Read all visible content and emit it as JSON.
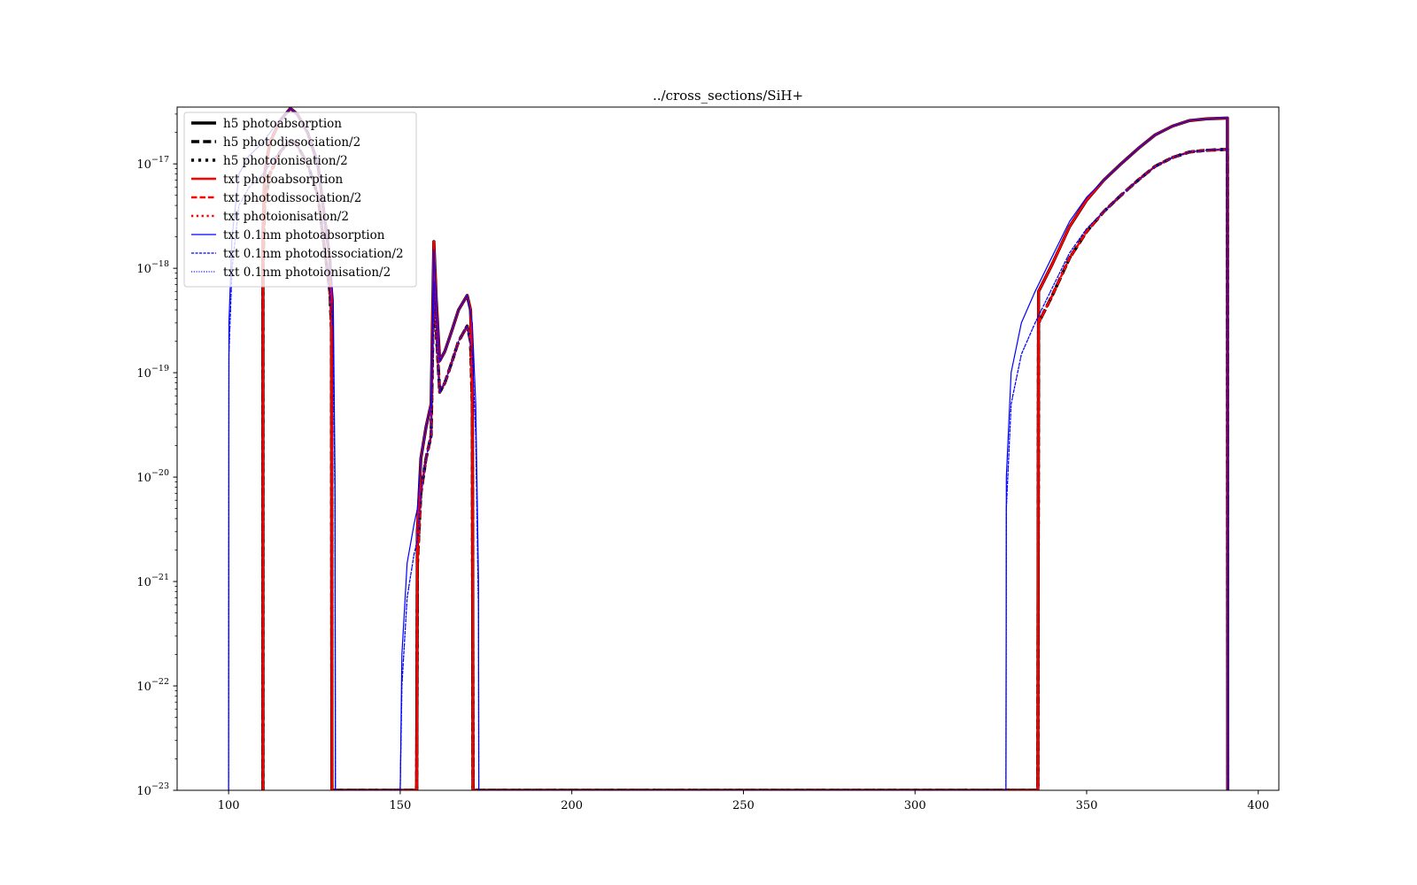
{
  "chart_data": {
    "type": "line",
    "title": "../cross_sections/SiH+",
    "xlabel": "",
    "ylabel": "",
    "xlim": [
      85,
      406
    ],
    "ylim": [
      1e-23,
      3.5e-17
    ],
    "yscale": "log",
    "x_ticks": [
      100,
      150,
      200,
      250,
      300,
      350,
      400
    ],
    "y_ticks": [
      {
        "value": 1e-23,
        "mantissa": "10",
        "exp": "−23"
      },
      {
        "value": 1e-22,
        "mantissa": "10",
        "exp": "−22"
      },
      {
        "value": 1e-21,
        "mantissa": "10",
        "exp": "−21"
      },
      {
        "value": 1e-20,
        "mantissa": "10",
        "exp": "−20"
      },
      {
        "value": 1e-19,
        "mantissa": "10",
        "exp": "−19"
      },
      {
        "value": 1e-18,
        "mantissa": "10",
        "exp": "−18"
      },
      {
        "value": 1e-17,
        "mantissa": "10",
        "exp": "−17"
      }
    ],
    "grid": false,
    "legend_position": "top-left",
    "series": [
      {
        "name": "h5 photoabsorption",
        "color": "#000000",
        "style": "solid",
        "width": 3.5,
        "shape": "abs"
      },
      {
        "name": "h5 photodissociation/2",
        "color": "#000000",
        "style": "dashed",
        "width": 3.5,
        "shape": "half"
      },
      {
        "name": "h5 photoionisation/2",
        "color": "#000000",
        "style": "dotted",
        "width": 3.5,
        "shape": "half"
      },
      {
        "name": "txt photoabsorption",
        "color": "#ff0000",
        "style": "solid",
        "width": 2.5,
        "shape": "abs"
      },
      {
        "name": "txt photodissociation/2",
        "color": "#ff0000",
        "style": "dashed",
        "width": 2.5,
        "shape": "half"
      },
      {
        "name": "txt photoionisation/2",
        "color": "#ff0000",
        "style": "dotted",
        "width": 2.5,
        "shape": "half"
      },
      {
        "name": "txt 0.1nm photoabsorption",
        "color": "#0000ff",
        "style": "solid",
        "width": 1.2,
        "shape": "abs_fine"
      },
      {
        "name": "txt 0.1nm photodissociation/2",
        "color": "#0000ff",
        "style": "dashed",
        "width": 1.2,
        "shape": "half_fine"
      },
      {
        "name": "txt 0.1nm photoionisation/2",
        "color": "#0000ff",
        "style": "dotted",
        "width": 1.2,
        "shape": "half_fine"
      }
    ],
    "curves": {
      "abs": [
        [
          110.0,
          1e-23
        ],
        [
          110.0,
          2e-18
        ],
        [
          110.5,
          8e-18
        ],
        [
          112,
          1.6e-17
        ],
        [
          115,
          2.6e-17
        ],
        [
          118,
          3.4e-17
        ],
        [
          120,
          3e-17
        ],
        [
          123,
          2e-17
        ],
        [
          126,
          1e-17
        ],
        [
          128,
          3e-18
        ],
        [
          129.5,
          1.2e-18
        ],
        [
          130.0,
          5e-19
        ],
        [
          130.1,
          1e-23
        ],
        [
          154.8,
          1e-23
        ],
        [
          155,
          3e-21
        ],
        [
          156,
          1.5e-20
        ],
        [
          157.5,
          3e-20
        ],
        [
          159,
          5e-20
        ],
        [
          159.8,
          1.8e-18
        ],
        [
          160.5,
          5e-19
        ],
        [
          161.5,
          1.3e-19
        ],
        [
          163,
          1.6e-19
        ],
        [
          165,
          2.5e-19
        ],
        [
          167,
          4e-19
        ],
        [
          169.5,
          5.5e-19
        ],
        [
          170.5,
          4e-19
        ],
        [
          171,
          1e-19
        ],
        [
          171.2,
          1e-23
        ],
        [
          335.8,
          1e-23
        ],
        [
          336,
          6e-19
        ],
        [
          340,
          1.1e-18
        ],
        [
          345,
          2.5e-18
        ],
        [
          350,
          4.5e-18
        ],
        [
          355,
          7e-18
        ],
        [
          360,
          1e-17
        ],
        [
          365,
          1.4e-17
        ],
        [
          370,
          1.9e-17
        ],
        [
          375,
          2.3e-17
        ],
        [
          380,
          2.6e-17
        ],
        [
          385,
          2.7e-17
        ],
        [
          391,
          2.75e-17
        ],
        [
          391.1,
          1e-23
        ]
      ],
      "half": [
        [
          110.0,
          1e-23
        ],
        [
          110.0,
          1e-18
        ],
        [
          110.5,
          4e-18
        ],
        [
          112,
          8e-18
        ],
        [
          115,
          1.3e-17
        ],
        [
          118,
          1.7e-17
        ],
        [
          120,
          1.5e-17
        ],
        [
          123,
          1e-17
        ],
        [
          126,
          5e-18
        ],
        [
          128,
          1.5e-18
        ],
        [
          129.5,
          6e-19
        ],
        [
          130.0,
          2.5e-19
        ],
        [
          130.1,
          1e-23
        ],
        [
          154.8,
          1e-23
        ],
        [
          155,
          1.5e-21
        ],
        [
          156,
          7e-21
        ],
        [
          157.5,
          1.5e-20
        ],
        [
          159,
          2.5e-20
        ],
        [
          159.8,
          9e-19
        ],
        [
          160.5,
          2.5e-19
        ],
        [
          161.5,
          6.5e-20
        ],
        [
          163,
          8e-20
        ],
        [
          165,
          1.25e-19
        ],
        [
          167,
          2e-19
        ],
        [
          169.5,
          2.8e-19
        ],
        [
          170.5,
          2e-19
        ],
        [
          171,
          5e-20
        ],
        [
          171.2,
          1e-23
        ],
        [
          335.8,
          1e-23
        ],
        [
          336,
          3e-19
        ],
        [
          340,
          5.5e-19
        ],
        [
          345,
          1.25e-18
        ],
        [
          350,
          2.25e-18
        ],
        [
          355,
          3.5e-18
        ],
        [
          360,
          5e-18
        ],
        [
          365,
          7e-18
        ],
        [
          370,
          9.5e-18
        ],
        [
          375,
          1.15e-17
        ],
        [
          380,
          1.3e-17
        ],
        [
          385,
          1.35e-17
        ],
        [
          391,
          1.38e-17
        ],
        [
          391.1,
          1e-23
        ]
      ],
      "abs_fine": [
        [
          100.0,
          1e-23
        ],
        [
          100.1,
          3e-19
        ],
        [
          101,
          2e-18
        ],
        [
          103,
          8e-18
        ],
        [
          106,
          1.2e-17
        ],
        [
          110,
          1.6e-17
        ],
        [
          113,
          2.2e-17
        ],
        [
          118,
          3.4e-17
        ],
        [
          120,
          3e-17
        ],
        [
          123,
          2e-17
        ],
        [
          126,
          1e-17
        ],
        [
          128,
          3e-18
        ],
        [
          129.5,
          1.2e-18
        ],
        [
          130.5,
          5e-19
        ],
        [
          131,
          1e-20
        ],
        [
          131.1,
          1e-23
        ],
        [
          150.0,
          1e-23
        ],
        [
          150.5,
          2e-22
        ],
        [
          152,
          1.5e-21
        ],
        [
          154,
          3.5e-21
        ],
        [
          155,
          5e-21
        ],
        [
          156,
          1.5e-20
        ],
        [
          157.5,
          3e-20
        ],
        [
          159,
          5e-20
        ],
        [
          159.8,
          1.5e-18
        ],
        [
          160.5,
          5e-19
        ],
        [
          161.5,
          1.3e-19
        ],
        [
          163,
          1.6e-19
        ],
        [
          165,
          2.5e-19
        ],
        [
          167,
          4e-19
        ],
        [
          169.5,
          5.5e-19
        ],
        [
          171,
          3e-19
        ],
        [
          172,
          5e-20
        ],
        [
          172.8,
          1e-21
        ],
        [
          172.9,
          1e-23
        ],
        [
          326.5,
          1e-23
        ],
        [
          326.6,
          1e-20
        ],
        [
          328,
          1e-19
        ],
        [
          331,
          3e-19
        ],
        [
          335,
          6e-19
        ],
        [
          340,
          1.3e-18
        ],
        [
          345,
          2.8e-18
        ],
        [
          350,
          4.8e-18
        ],
        [
          355,
          7e-18
        ],
        [
          360,
          1e-17
        ],
        [
          365,
          1.4e-17
        ],
        [
          370,
          1.9e-17
        ],
        [
          375,
          2.3e-17
        ],
        [
          380,
          2.6e-17
        ],
        [
          385,
          2.7e-17
        ],
        [
          391,
          2.75e-17
        ],
        [
          391.1,
          1e-23
        ]
      ],
      "half_fine": [
        [
          100.0,
          1e-23
        ],
        [
          100.1,
          1.5e-19
        ],
        [
          101,
          1e-18
        ],
        [
          103,
          4e-18
        ],
        [
          106,
          6e-18
        ],
        [
          110,
          8e-18
        ],
        [
          113,
          1.1e-17
        ],
        [
          118,
          1.7e-17
        ],
        [
          120,
          1.5e-17
        ],
        [
          123,
          1e-17
        ],
        [
          126,
          5e-18
        ],
        [
          128,
          1.5e-18
        ],
        [
          129.5,
          6e-19
        ],
        [
          130.5,
          2.5e-19
        ],
        [
          131,
          5e-21
        ],
        [
          131.1,
          1e-23
        ],
        [
          150.0,
          1e-23
        ],
        [
          150.5,
          1e-22
        ],
        [
          152,
          7e-22
        ],
        [
          154,
          1.8e-21
        ],
        [
          155,
          2.5e-21
        ],
        [
          156,
          7e-21
        ],
        [
          157.5,
          1.5e-20
        ],
        [
          159,
          2.5e-20
        ],
        [
          159.8,
          7.5e-19
        ],
        [
          160.5,
          2.5e-19
        ],
        [
          161.5,
          6.5e-20
        ],
        [
          163,
          8e-20
        ],
        [
          165,
          1.25e-19
        ],
        [
          167,
          2e-19
        ],
        [
          169.5,
          2.8e-19
        ],
        [
          171,
          1.5e-19
        ],
        [
          172,
          2.5e-20
        ],
        [
          172.8,
          5e-22
        ],
        [
          172.9,
          1e-23
        ],
        [
          326.5,
          1e-23
        ],
        [
          326.6,
          5e-21
        ],
        [
          328,
          5e-20
        ],
        [
          331,
          1.5e-19
        ],
        [
          335,
          3e-19
        ],
        [
          340,
          6.5e-19
        ],
        [
          345,
          1.4e-18
        ],
        [
          350,
          2.4e-18
        ],
        [
          355,
          3.5e-18
        ],
        [
          360,
          5e-18
        ],
        [
          365,
          7e-18
        ],
        [
          370,
          9.5e-18
        ],
        [
          375,
          1.15e-17
        ],
        [
          380,
          1.3e-17
        ],
        [
          385,
          1.35e-17
        ],
        [
          391,
          1.38e-17
        ],
        [
          391.1,
          1e-23
        ]
      ]
    }
  }
}
